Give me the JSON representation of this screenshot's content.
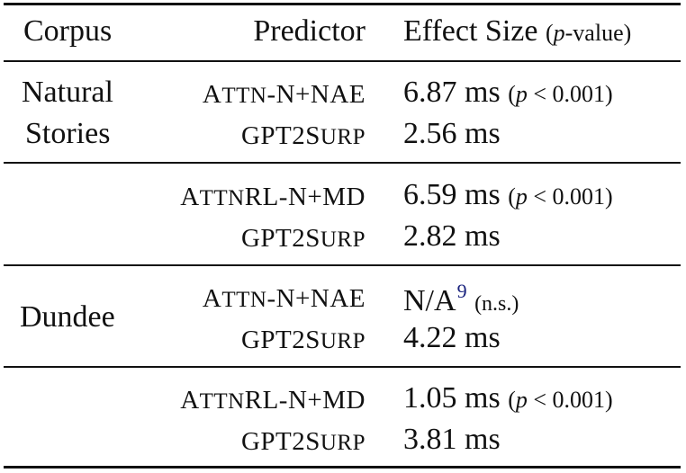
{
  "headers": {
    "corpus": "Corpus",
    "predictor": "Predictor",
    "effect": "Effect Size",
    "effect_paren_open": "(",
    "effect_paren_p": "p",
    "effect_paren_rest": "-value)"
  },
  "groups": [
    {
      "corpus_line1": "Natural",
      "corpus_line2": "Stories",
      "rows": [
        {
          "predictor_a": "A",
          "predictor_b": "TTN",
          "predictor_c": "-N+NAE",
          "value": "6.87 ms",
          "paren": "(p < 0.001)"
        },
        {
          "predictor_a": "GPT2S",
          "predictor_b": "URP",
          "predictor_c": "",
          "value": "2.56 ms",
          "paren": ""
        }
      ]
    },
    {
      "corpus_line1": "",
      "corpus_line2": "",
      "rows": [
        {
          "predictor_a": "A",
          "predictor_b": "TTN",
          "predictor_c": "RL-N+MD",
          "value": "6.59 ms",
          "paren": "(p < 0.001)"
        },
        {
          "predictor_a": "GPT2S",
          "predictor_b": "URP",
          "predictor_c": "",
          "value": "2.82 ms",
          "paren": ""
        }
      ]
    },
    {
      "corpus_line1": "Dundee",
      "corpus_line2": "",
      "rows": [
        {
          "predictor_a": "A",
          "predictor_b": "TTN",
          "predictor_c": "-N+NAE",
          "value": "N/A",
          "footnote": "9",
          "paren": "(n.s.)"
        },
        {
          "predictor_a": "GPT2S",
          "predictor_b": "URP",
          "predictor_c": "",
          "value": "4.22 ms",
          "paren": ""
        }
      ]
    },
    {
      "corpus_line1": "",
      "corpus_line2": "",
      "rows": [
        {
          "predictor_a": "A",
          "predictor_b": "TTN",
          "predictor_c": "RL-N+MD",
          "value": "1.05 ms",
          "paren": "(p < 0.001)"
        },
        {
          "predictor_a": "GPT2S",
          "predictor_b": "URP",
          "predictor_c": "",
          "value": "3.81 ms",
          "paren": ""
        }
      ]
    }
  ]
}
